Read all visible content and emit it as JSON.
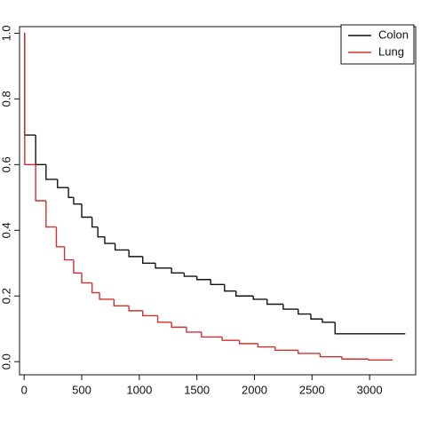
{
  "chart_data": {
    "type": "step",
    "xlim": [
      -40,
      3400
    ],
    "ylim": [
      -0.04,
      1.02
    ],
    "xticks": [
      0,
      500,
      1000,
      1500,
      2000,
      2500,
      3000
    ],
    "yticks": [
      {
        "value": 0,
        "label": "0.0"
      },
      0.2,
      0.4,
      0.6,
      0.8,
      {
        "value": 1,
        "label": "1.0"
      }
    ],
    "legend": "top-right",
    "series": [
      {
        "name": "Colon",
        "color": "#111111",
        "x": [
          0,
          5,
          100,
          190,
          290,
          385,
          430,
          500,
          590,
          640,
          700,
          790,
          910,
          1030,
          1140,
          1280,
          1390,
          1500,
          1620,
          1740,
          1840,
          1990,
          2110,
          2250,
          2380,
          2490,
          2590,
          2700,
          3310
        ],
        "values": [
          1.0,
          0.69,
          0.6,
          0.555,
          0.53,
          0.5,
          0.48,
          0.44,
          0.41,
          0.38,
          0.36,
          0.34,
          0.32,
          0.3,
          0.285,
          0.27,
          0.26,
          0.25,
          0.235,
          0.215,
          0.2,
          0.19,
          0.175,
          0.16,
          0.145,
          0.13,
          0.12,
          0.085,
          0.085
        ]
      },
      {
        "name": "Lung",
        "color": "#d03030",
        "x": [
          0,
          5,
          100,
          190,
          280,
          350,
          430,
          500,
          590,
          655,
          780,
          910,
          1030,
          1160,
          1280,
          1410,
          1540,
          1720,
          1870,
          2030,
          2180,
          2380,
          2570,
          2760,
          2990,
          3200
        ],
        "values": [
          1.0,
          0.6,
          0.49,
          0.41,
          0.35,
          0.31,
          0.27,
          0.24,
          0.21,
          0.19,
          0.17,
          0.155,
          0.14,
          0.12,
          0.105,
          0.09,
          0.075,
          0.065,
          0.055,
          0.045,
          0.035,
          0.025,
          0.015,
          0.008,
          0.005,
          0.005
        ]
      }
    ]
  }
}
